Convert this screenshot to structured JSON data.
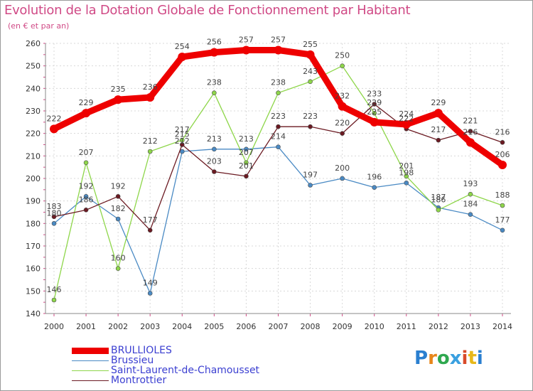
{
  "title": "Evolution de la Dotation Globale de Fonctionnement par Habitant",
  "subtitle": "(en € et par an)",
  "logo": "Proxiti",
  "chart_data": {
    "type": "line",
    "x": [
      "2000",
      "2001",
      "2002",
      "2003",
      "2004",
      "2005",
      "2006",
      "2007",
      "2008",
      "2009",
      "2010",
      "2011",
      "2012",
      "2013",
      "2014"
    ],
    "ylim": [
      140,
      260
    ],
    "yticks": [
      140,
      150,
      160,
      170,
      180,
      190,
      200,
      210,
      220,
      230,
      240,
      250,
      260
    ],
    "grid": true,
    "legend_position": "bottom-left",
    "series": [
      {
        "name": "Brussieu",
        "color": "#4a8ac4",
        "values": [
          180,
          192,
          182,
          149,
          212,
          213,
          213,
          214,
          197,
          200,
          196,
          198,
          187,
          184,
          177
        ]
      },
      {
        "name": "Saint-Laurent-de-Chamousset",
        "color": "#8ed64a",
        "values": [
          146,
          207,
          160,
          212,
          217,
          238,
          207,
          238,
          243,
          250,
          229,
          201,
          186,
          193,
          188
        ]
      },
      {
        "name": "Montrottier",
        "color": "#6b1a22",
        "values": [
          183,
          186,
          192,
          177,
          215,
          203,
          201,
          223,
          223,
          220,
          233,
          222,
          217,
          221,
          216
        ]
      },
      {
        "name": "BRULLIOLES",
        "color": "#ee0000",
        "values": [
          222,
          229,
          235,
          236,
          254,
          256,
          257,
          257,
          255,
          232,
          225,
          224,
          229,
          216,
          206
        ]
      }
    ],
    "legend_order": [
      "BRULLIOLES",
      "Brussieu",
      "Saint-Laurent-de-Chamousset",
      "Montrottier"
    ]
  }
}
